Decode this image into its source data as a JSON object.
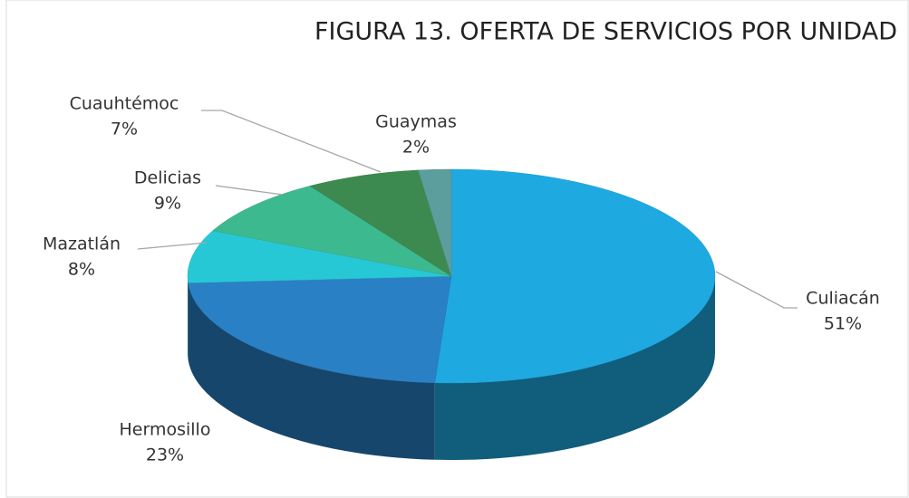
{
  "chart_data": {
    "type": "pie",
    "title": "FIGURA 13. OFERTA DE SERVICIOS POR UNIDAD",
    "categories": [
      "Culiacán",
      "Hermosillo",
      "Mazatlán",
      "Delicias",
      "Cuauhtémoc",
      "Guaymas"
    ],
    "values": [
      51,
      23,
      8,
      9,
      7,
      2
    ],
    "value_labels": [
      "51%",
      "23%",
      "8%",
      "9%",
      "7%",
      "2%"
    ],
    "colors": [
      "#1fa9e1",
      "#2a80c5",
      "#27c8d6",
      "#3db98f",
      "#3d8a50",
      "#5c9e9e"
    ]
  }
}
